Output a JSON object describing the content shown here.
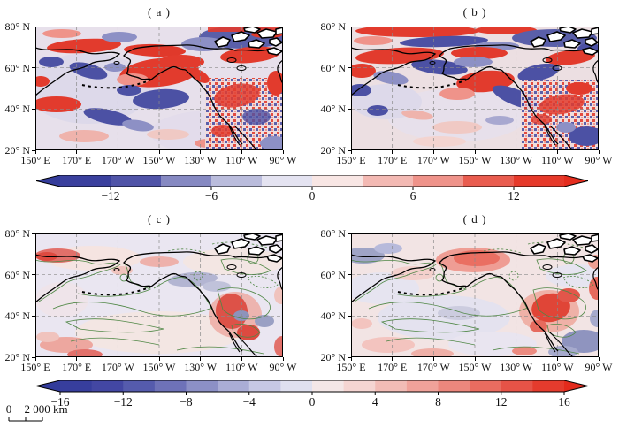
{
  "figure": {
    "panels": [
      {
        "id": "a",
        "label": "( a )"
      },
      {
        "id": "b",
        "label": "( b )"
      },
      {
        "id": "c",
        "label": "( c )"
      },
      {
        "id": "d",
        "label": "( d )"
      }
    ],
    "axes": {
      "x_tick_labels": [
        "150° E",
        "170° E",
        "170° W",
        "150° W",
        "130° W",
        "110° W",
        "90° W"
      ],
      "y_tick_labels": [
        "80° N",
        "60° N",
        "40° N",
        "20° N"
      ]
    },
    "colorbars": [
      {
        "id": "top",
        "range": [
          -15,
          15
        ],
        "tick_values": [
          -12,
          -6,
          0,
          6,
          12
        ],
        "tick_labels": [
          "−12",
          "−6",
          "0",
          "6",
          "12"
        ],
        "segment_colors": [
          "#343c9b",
          "#3a409e",
          "#5054a8",
          "#8689c2",
          "#babcdc",
          "#e4e3f1",
          "#f8e6e4",
          "#f3b9b3",
          "#ef938a",
          "#e95c4f",
          "#e6392a",
          "#e52d1e"
        ]
      },
      {
        "id": "bottom",
        "range": [
          -16,
          16
        ],
        "tick_values": [
          -16,
          -12,
          -8,
          -4,
          0,
          4,
          8,
          12,
          16
        ],
        "tick_labels": [
          "−16",
          "−12",
          "−8",
          "−4",
          "0",
          "4",
          "8",
          "12",
          "16"
        ],
        "segment_colors": [
          "#323b9b",
          "#373e9d",
          "#4347a3",
          "#555bad",
          "#6e72b8",
          "#8c90c6",
          "#aaadd6",
          "#c6c8e4",
          "#dfe0ef",
          "#f4e7e7",
          "#f5d5d2",
          "#f2bcb6",
          "#f0a29a",
          "#ec877d",
          "#e96c60",
          "#e65347",
          "#e43b2d",
          "#e32a1c"
        ]
      }
    ],
    "scalebar": {
      "zero_label": "0",
      "distance_label": "2 000 km"
    },
    "map_colors": {
      "coastline": "#000000",
      "gridline": "#8a8a8a",
      "contour_green": "#4f8745",
      "strong_red": "#e23b2d",
      "strong_blue": "#4c51a4"
    }
  }
}
